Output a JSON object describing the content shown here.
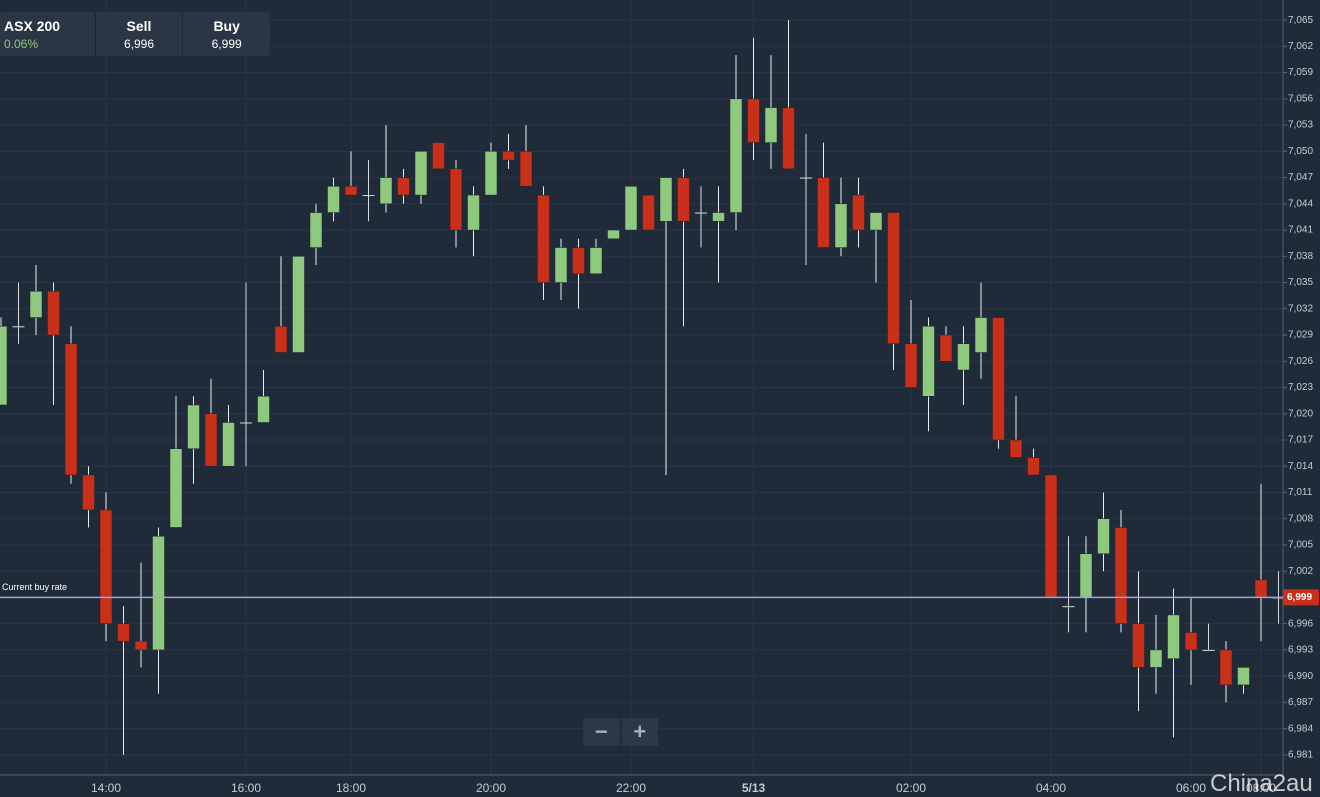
{
  "header": {
    "instrument": "ASX 200",
    "change": "0.06%",
    "sell_label": "Sell",
    "sell": "6,996",
    "buy_label": "Buy",
    "buy": "6,999"
  },
  "zoom": {
    "out": "−",
    "in": "+"
  },
  "watermark": "China2au",
  "chart_data": {
    "type": "candlestick",
    "categories": [
      null,
      null,
      null,
      null,
      null,
      null,
      "14:00",
      null,
      null,
      null,
      null,
      null,
      null,
      null,
      "16:00",
      null,
      null,
      null,
      null,
      null,
      "18:00",
      null,
      null,
      null,
      null,
      null,
      null,
      null,
      "20:00",
      null,
      null,
      null,
      null,
      null,
      null,
      null,
      "22:00",
      null,
      null,
      null,
      null,
      null,
      null,
      "5/13",
      null,
      null,
      null,
      null,
      null,
      null,
      null,
      null,
      "02:00",
      null,
      null,
      null,
      null,
      null,
      null,
      null,
      "04:00",
      null,
      null,
      null,
      null,
      null,
      null,
      null,
      "06:00",
      null,
      null,
      null,
      "08:00",
      null
    ],
    "open": [
      7021,
      7030,
      7031,
      7034,
      7028,
      7013,
      7009,
      6996,
      6994,
      6993,
      7007,
      7016,
      7020,
      7014,
      7019,
      7019,
      7030,
      7027,
      7039,
      7043,
      7046,
      7045,
      7044,
      7047,
      7045,
      7051,
      7048,
      7041,
      7045,
      7050,
      7050,
      7045,
      7035,
      7039,
      7036,
      7040,
      7041,
      7045,
      7042,
      7047,
      7043,
      7042,
      7043,
      7056,
      7051,
      7055,
      7047,
      7047,
      7039,
      7045,
      7041,
      7043,
      7028,
      7022,
      7029,
      7025,
      7027,
      7031,
      7017,
      7015,
      7013,
      6998,
      6999,
      7004,
      7007,
      6996,
      6991,
      6992,
      6995,
      6993,
      6993,
      6989,
      7001,
      6999
    ],
    "high": [
      7031,
      7035,
      7037,
      7035,
      7030,
      7014,
      7011,
      6998,
      7003,
      7007,
      7022,
      7022,
      7024,
      7021,
      7035,
      7025,
      7038,
      7038,
      7044,
      7047,
      7050,
      7049,
      7053,
      7048,
      7050,
      7051,
      7049,
      7046,
      7051,
      7052,
      7053,
      7046,
      7040,
      7040,
      7040,
      7041,
      7046,
      7045,
      7047,
      7048,
      7046,
      7046,
      7061,
      7063,
      7061,
      7065,
      7052,
      7051,
      7047,
      7047,
      7043,
      7043,
      7033,
      7031,
      7030,
      7030,
      7035,
      7031,
      7022,
      7016,
      7013,
      7006,
      7006,
      7011,
      7009,
      7002,
      6997,
      7000,
      6999,
      6996,
      6994,
      6991,
      7012,
      7002
    ],
    "low": [
      7021,
      7028,
      7029,
      7021,
      7012,
      7007,
      6994,
      6981,
      6991,
      6988,
      7007,
      7012,
      7014,
      7014,
      7014,
      7019,
      7027,
      7027,
      7037,
      7042,
      7045,
      7042,
      7043,
      7044,
      7044,
      7048,
      7039,
      7038,
      7045,
      7048,
      7046,
      7033,
      7033,
      7032,
      7036,
      7040,
      7041,
      7041,
      7013,
      7030,
      7039,
      7035,
      7041,
      7049,
      7048,
      7048,
      7037,
      7039,
      7038,
      7039,
      7035,
      7025,
      7023,
      7018,
      7026,
      7021,
      7024,
      7016,
      7015,
      7013,
      6999,
      6995,
      6995,
      7002,
      6995,
      6986,
      6988,
      6983,
      6989,
      6993,
      6987,
      6988,
      6994,
      6996
    ],
    "close": [
      7030,
      7030,
      7034,
      7029,
      7013,
      7009,
      6996,
      6994,
      6993,
      7006,
      7016,
      7021,
      7014,
      7019,
      7019,
      7022,
      7027,
      7038,
      7043,
      7046,
      7045,
      7045,
      7047,
      7045,
      7050,
      7048,
      7041,
      7045,
      7050,
      7049,
      7046,
      7035,
      7039,
      7036,
      7039,
      7041,
      7046,
      7041,
      7047,
      7042,
      7043,
      7043,
      7056,
      7051,
      7055,
      7048,
      7047,
      7039,
      7044,
      7041,
      7043,
      7028,
      7023,
      7030,
      7026,
      7028,
      7031,
      7017,
      7015,
      7013,
      6999,
      6998,
      7004,
      7008,
      6996,
      6991,
      6993,
      6997,
      6993,
      6993,
      6989,
      6991,
      6999,
      6999
    ],
    "up_color": "#8fc97e",
    "down_color": "#c9301a",
    "doji_color": "#d5dbe2",
    "ylim": [
      6978.7,
      7067.3
    ],
    "yticks": [
      {
        "value": 6981,
        "label": "6,981"
      },
      {
        "value": 6984,
        "label": "6,984"
      },
      {
        "value": 6987,
        "label": "6,987"
      },
      {
        "value": 6990,
        "label": "6,990"
      },
      {
        "value": 6993,
        "label": "6,993"
      },
      {
        "value": 6996,
        "label": "6,996"
      },
      {
        "value": 6999,
        "label": "6,999"
      },
      {
        "value": 7002,
        "label": "7,002"
      },
      {
        "value": 7005,
        "label": "7,005"
      },
      {
        "value": 7008,
        "label": "7,008"
      },
      {
        "value": 7011,
        "label": "7,011"
      },
      {
        "value": 7014,
        "label": "7,014"
      },
      {
        "value": 7017,
        "label": "7,017"
      },
      {
        "value": 7020,
        "label": "7,020"
      },
      {
        "value": 7023,
        "label": "7,023"
      },
      {
        "value": 7026,
        "label": "7,026"
      },
      {
        "value": 7029,
        "label": "7,029"
      },
      {
        "value": 7032,
        "label": "7,032"
      },
      {
        "value": 7035,
        "label": "7,035"
      },
      {
        "value": 7038,
        "label": "7,038"
      },
      {
        "value": 7041,
        "label": "7,041"
      },
      {
        "value": 7044,
        "label": "7,044"
      },
      {
        "value": 7047,
        "label": "7,047"
      },
      {
        "value": 7050,
        "label": "7,050"
      },
      {
        "value": 7053,
        "label": "7,053"
      },
      {
        "value": 7056,
        "label": "7,056"
      },
      {
        "value": 7059,
        "label": "7,059"
      },
      {
        "value": 7062,
        "label": "7,062"
      },
      {
        "value": 7065,
        "label": "7,065"
      }
    ],
    "grid": true,
    "buy_rate": {
      "label": "Current buy rate",
      "value": 6999,
      "value_label": "6,999",
      "color": "#a99fd6"
    }
  }
}
